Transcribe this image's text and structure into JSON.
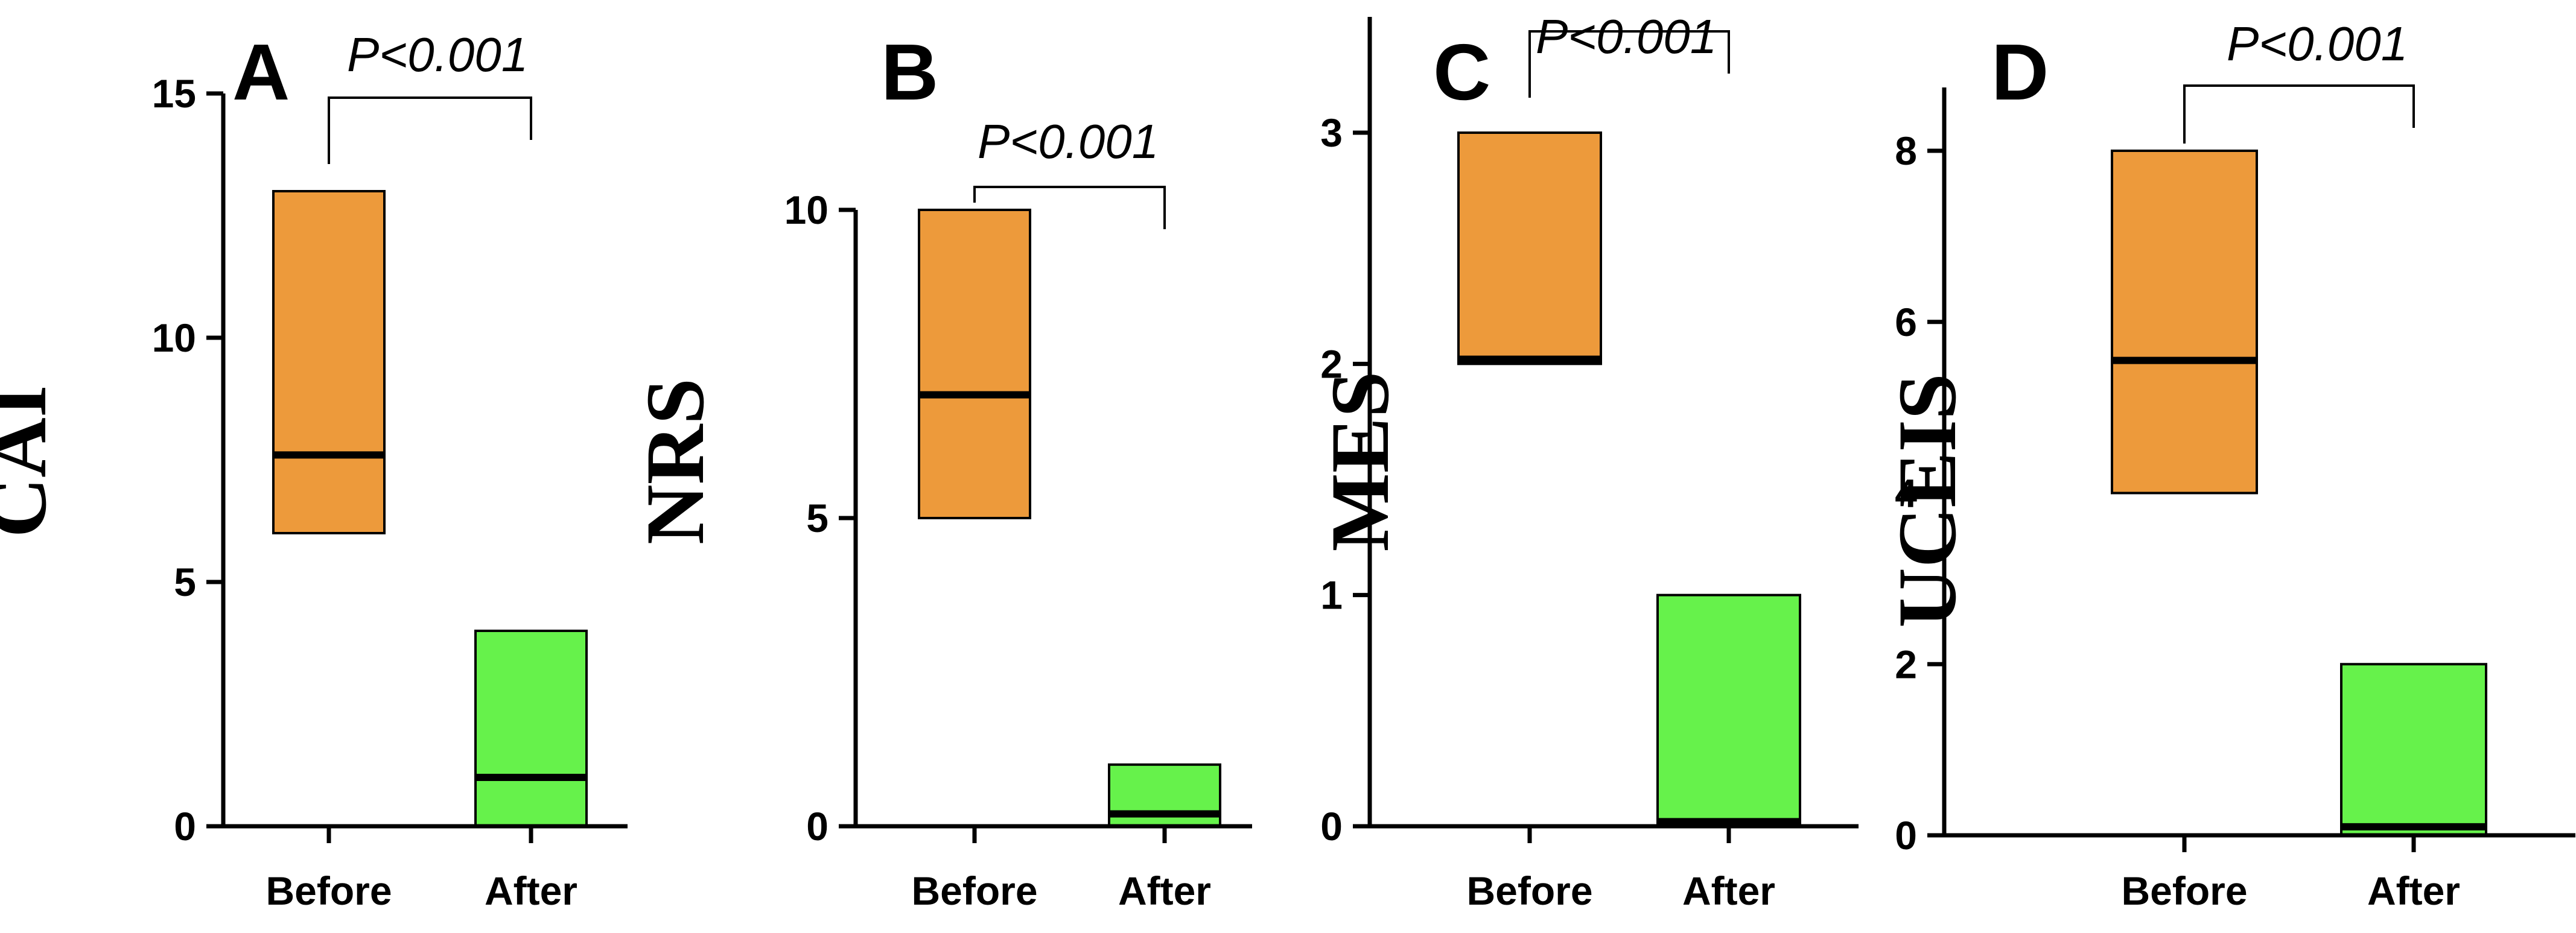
{
  "colors": {
    "before": "#ED9A3B",
    "after": "#66F24B",
    "line": "#000000"
  },
  "chart_data": [
    {
      "type": "box",
      "panel": "A",
      "ylabel": "CAI",
      "categories": [
        "Before",
        "After"
      ],
      "yticks": [
        0,
        5,
        10,
        15
      ],
      "ylim": [
        0,
        15
      ],
      "boxes": [
        {
          "name": "Before",
          "q1": 6,
          "median": 7.6,
          "q3": 13
        },
        {
          "name": "After",
          "q1": 0,
          "median": 1,
          "q3": 4
        }
      ],
      "annotation": "P<0.001"
    },
    {
      "type": "box",
      "panel": "B",
      "ylabel": "NRS",
      "categories": [
        "Before",
        "After"
      ],
      "yticks": [
        0,
        5,
        10
      ],
      "ylim": [
        0,
        12
      ],
      "boxes": [
        {
          "name": "Before",
          "q1": 5,
          "median": 7,
          "q3": 10
        },
        {
          "name": "After",
          "q1": 0,
          "median": 0.2,
          "q3": 1
        }
      ],
      "annotation": "P<0.001"
    },
    {
      "type": "box",
      "panel": "C",
      "ylabel": "MES",
      "categories": [
        "Before",
        "After"
      ],
      "yticks": [
        0,
        1,
        2,
        3
      ],
      "ylim": [
        0,
        3
      ],
      "boxes": [
        {
          "name": "Before",
          "q1": 2,
          "median": 2.02,
          "q3": 3
        },
        {
          "name": "After",
          "q1": 0,
          "median": 0.02,
          "q3": 1
        }
      ],
      "annotation": "P<0.001"
    },
    {
      "type": "box",
      "panel": "D",
      "ylabel": "UCEIS",
      "categories": [
        "Before",
        "After"
      ],
      "yticks": [
        0,
        2,
        4,
        6,
        8
      ],
      "ylim": [
        0,
        8
      ],
      "boxes": [
        {
          "name": "Before",
          "q1": 4,
          "median": 5.55,
          "q3": 8
        },
        {
          "name": "After",
          "q1": 0,
          "median": 0.1,
          "q3": 2
        }
      ],
      "annotation": "P<0.001"
    }
  ]
}
